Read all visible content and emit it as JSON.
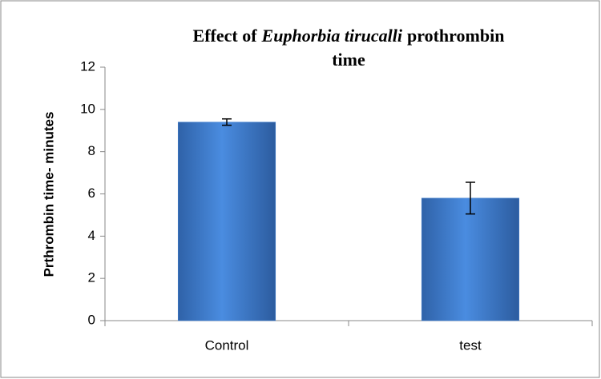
{
  "chart_data": {
    "type": "bar",
    "title": [
      "Effect of",
      "Euphorbia tirucalli",
      "prothrombin",
      "time"
    ],
    "y_label": "Prthrombin time- minutes",
    "categories": [
      "Control",
      "test"
    ],
    "values": [
      9.4,
      5.8
    ],
    "errors": [
      0.15,
      0.75
    ],
    "color": "#3f7fd0",
    "ylim": [
      0,
      12
    ],
    "yticks": [
      0,
      2,
      4,
      6,
      8,
      10,
      12
    ],
    "grid": false
  }
}
